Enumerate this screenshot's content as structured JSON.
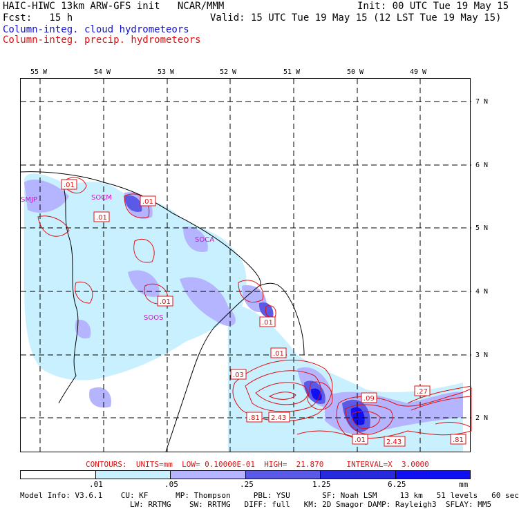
{
  "header": {
    "title_left": "HAIC-HIWC 13km ARW-GFS init   NCAR/MMM",
    "init": "Init: 00 UTC Tue 19 May 15",
    "fcst": "Fcst:   15 h",
    "valid": "Valid: 15 UTC Tue 19 May 15 (12 LST Tue 19 May 15)",
    "legend_cloud": "Column-integ. cloud hydrometeors",
    "legend_precip": "Column-integ. precip. hydrometeors"
  },
  "colors": {
    "cloud_text": "#1010d0",
    "precip_text": "#e01010",
    "station_text": "#d010d0",
    "shade_levels": [
      "#ffffff",
      "#c8f0ff",
      "#b4b4ff",
      "#8c8cf0",
      "#5a5ae6",
      "#2828dc",
      "#1010f0"
    ]
  },
  "axes": {
    "lon_labels": [
      "55 W",
      "54 W",
      "53 W",
      "52 W",
      "51 W",
      "50 W",
      "49 W"
    ],
    "lat_labels": [
      "7 N",
      "6 N",
      "5 N",
      "4 N",
      "3 N",
      "2 N"
    ]
  },
  "stations": [
    "SMJP",
    "SOCM",
    "SOCA",
    "SOOS"
  ],
  "contour_labels": [
    ".01",
    ".01",
    ".01",
    ".01",
    ".01",
    ".01",
    ".03",
    ".81",
    "2.43",
    ".09",
    ".27",
    ".01",
    "2.43",
    ".81"
  ],
  "contour_info": "CONTOURS:  UNITS=mm  LOW= 0.10000E-01  HIGH=  21.870     INTERVAL=X  3.0000",
  "colorbar": {
    "ticks": [
      ".01",
      ".05",
      ".25",
      "1.25",
      "6.25"
    ],
    "units": "mm"
  },
  "model_info": {
    "line1": "Model Info: V3.6.1    CU: KF      MP: Thompson     PBL: YSU       SF: Noah LSM     13 km   51 levels   60 sec",
    "line2": "                        LW: RRTMG    SW: RRTMG   DIFF: full   KM: 2D Smagor DAMP: Rayleigh3  SFLAY: MM5"
  }
}
